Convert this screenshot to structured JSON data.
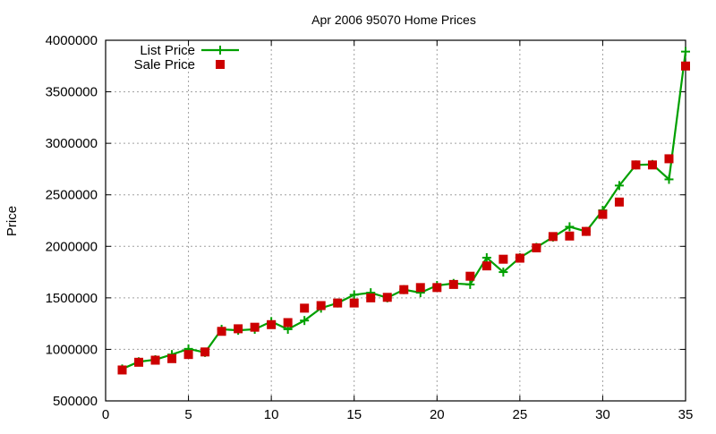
{
  "chart_data": {
    "type": "line",
    "title": "Apr 2006 95070 Home Prices",
    "xlabel": "",
    "ylabel": "Price",
    "xlim": [
      0,
      35
    ],
    "ylim": [
      500000,
      4000000
    ],
    "x_ticks": [
      0,
      5,
      10,
      15,
      20,
      25,
      30,
      35
    ],
    "y_ticks": [
      500000,
      1000000,
      1500000,
      2000000,
      2500000,
      3000000,
      3500000,
      4000000
    ],
    "grid": true,
    "legend_position": "top-left",
    "x": [
      1,
      2,
      3,
      4,
      5,
      6,
      7,
      8,
      9,
      10,
      11,
      12,
      13,
      14,
      15,
      16,
      17,
      18,
      19,
      20,
      21,
      22,
      23,
      24,
      25,
      26,
      27,
      28,
      29,
      30,
      31,
      32,
      33,
      34,
      35
    ],
    "series": [
      {
        "name": "List Price",
        "style": "linespoints",
        "marker": "plus",
        "color": "#00a000",
        "values": [
          810000,
          880000,
          900000,
          950000,
          1005000,
          970000,
          1195000,
          1185000,
          1195000,
          1270000,
          1195000,
          1280000,
          1400000,
          1450000,
          1530000,
          1550000,
          1500000,
          1580000,
          1550000,
          1620000,
          1640000,
          1630000,
          1890000,
          1750000,
          1890000,
          1990000,
          2090000,
          2190000,
          2145000,
          2350000,
          2590000,
          2790000,
          2795000,
          2650000,
          3890000
        ]
      },
      {
        "name": "Sale Price",
        "style": "points",
        "marker": "square",
        "color": "#cc0000",
        "values": [
          800000,
          875000,
          895000,
          910000,
          950000,
          975000,
          1175000,
          1200000,
          1215000,
          1240000,
          1260000,
          1400000,
          1425000,
          1450000,
          1450000,
          1500000,
          1505000,
          1580000,
          1600000,
          1600000,
          1630000,
          1710000,
          1810000,
          1875000,
          1885000,
          1985000,
          2095000,
          2100000,
          2145000,
          2310000,
          2430000,
          2790000,
          2790000,
          2850000,
          3750000
        ]
      }
    ]
  }
}
